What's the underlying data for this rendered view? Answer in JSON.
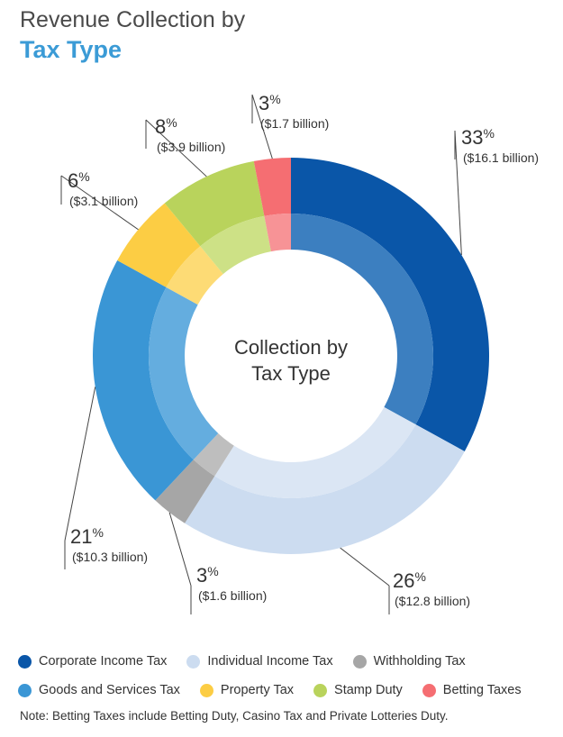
{
  "header": {
    "title_line1": "Revenue Collection by",
    "title_line2": "Tax Type"
  },
  "chart_data": {
    "type": "pie",
    "donut": true,
    "center_label": [
      "Collection by",
      "Tax Type"
    ],
    "slices": [
      {
        "name": "Corporate Income Tax",
        "percent": 33,
        "pct_label": "33",
        "value_label": "($16.1 billion)",
        "value_billion": 16.1,
        "color": "#0a56a8",
        "inner_color": "#3c7fc0"
      },
      {
        "name": "Individual Income Tax",
        "percent": 26,
        "pct_label": "26",
        "value_label": "($12.8 billion)",
        "value_billion": 12.8,
        "color": "#ccdcf0",
        "inner_color": "#dbe6f4"
      },
      {
        "name": "Withholding Tax",
        "percent": 3,
        "pct_label": "3",
        "value_label": "($1.6 billion)",
        "value_billion": 1.6,
        "color": "#a6a6a6",
        "inner_color": "#bebebe"
      },
      {
        "name": "Goods and Services Tax",
        "percent": 21,
        "pct_label": "21",
        "value_label": "($10.3 billion)",
        "value_billion": 10.3,
        "color": "#3a96d5",
        "inner_color": "#64addf"
      },
      {
        "name": "Property Tax",
        "percent": 6,
        "pct_label": "6",
        "value_label": "($3.1 billion)",
        "value_billion": 3.1,
        "color": "#fccd44",
        "inner_color": "#fddb75"
      },
      {
        "name": "Stamp Duty",
        "percent": 8,
        "pct_label": "8",
        "value_label": "($3.9 billion)",
        "value_billion": 3.9,
        "color": "#b9d35c",
        "inner_color": "#cde186"
      },
      {
        "name": "Betting Taxes",
        "percent": 3,
        "pct_label": "3",
        "value_label": "($1.7 billion)",
        "value_billion": 1.7,
        "color": "#f56e72",
        "inner_color": "#f79396"
      }
    ],
    "legend_placement": "bottom"
  },
  "legend_rows": [
    [
      0,
      1,
      2
    ],
    [
      3,
      4,
      5,
      6
    ]
  ],
  "footer": {
    "note": "Note: Betting Taxes include Betting Duty, Casino Tax and Private Lotteries Duty."
  }
}
